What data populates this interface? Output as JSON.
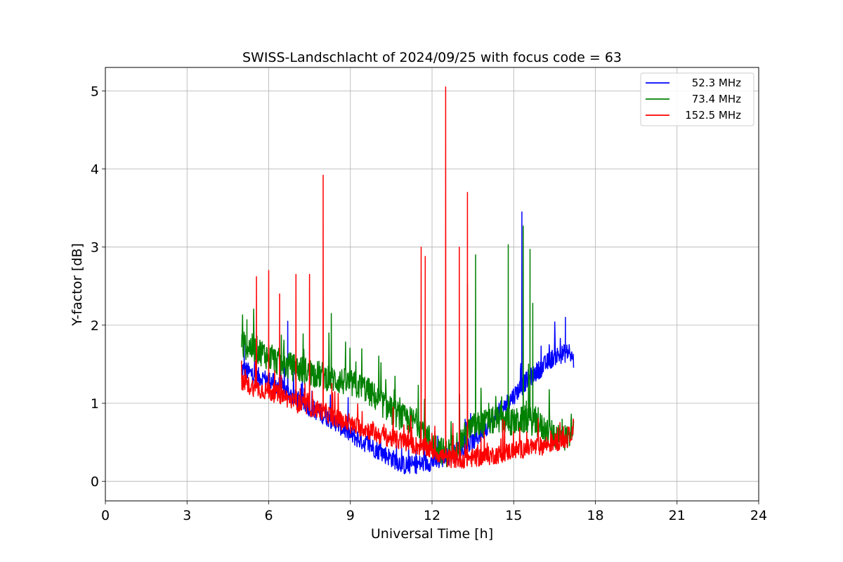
{
  "chart_data": {
    "type": "line",
    "title": "SWISS-Landschlacht of 2024/09/25 with focus code = 63",
    "xlabel": "Universal Time [h]",
    "ylabel": "Y-factor [dB]",
    "xlim": [
      0,
      24
    ],
    "ylim": [
      -0.25,
      5.3
    ],
    "xticks": [
      0,
      3,
      6,
      9,
      12,
      15,
      18,
      21,
      24
    ],
    "yticks": [
      0,
      1,
      2,
      3,
      4,
      5
    ],
    "grid": true,
    "legend_position": "top-right",
    "series": [
      {
        "name": "52.3 MHz",
        "color": "#0000ff",
        "base": [
          [
            5.0,
            1.45
          ],
          [
            5.5,
            1.35
          ],
          [
            6.0,
            1.3
          ],
          [
            6.5,
            1.2
          ],
          [
            7.0,
            1.05
          ],
          [
            7.5,
            0.95
          ],
          [
            8.0,
            0.85
          ],
          [
            8.5,
            0.75
          ],
          [
            9.0,
            0.6
          ],
          [
            9.5,
            0.5
          ],
          [
            10.0,
            0.4
          ],
          [
            10.5,
            0.3
          ],
          [
            11.0,
            0.2
          ],
          [
            11.5,
            0.22
          ],
          [
            12.0,
            0.25
          ],
          [
            12.5,
            0.3
          ],
          [
            13.0,
            0.4
          ],
          [
            13.5,
            0.5
          ],
          [
            14.0,
            0.7
          ],
          [
            14.5,
            0.9
          ],
          [
            15.0,
            1.1
          ],
          [
            15.5,
            1.3
          ],
          [
            16.0,
            1.45
          ],
          [
            16.5,
            1.6
          ],
          [
            17.0,
            1.65
          ],
          [
            17.2,
            1.55
          ]
        ],
        "noise": 0.12,
        "spikes": [
          [
            5.1,
            1.75
          ],
          [
            6.7,
            2.05
          ],
          [
            15.3,
            3.45
          ],
          [
            16.9,
            2.1
          ]
        ]
      },
      {
        "name": "73.4 MHz",
        "color": "#008000",
        "base": [
          [
            5.0,
            1.75
          ],
          [
            5.5,
            1.7
          ],
          [
            6.0,
            1.6
          ],
          [
            6.5,
            1.5
          ],
          [
            7.0,
            1.45
          ],
          [
            7.5,
            1.4
          ],
          [
            8.0,
            1.35
          ],
          [
            8.5,
            1.3
          ],
          [
            9.0,
            1.25
          ],
          [
            9.5,
            1.2
          ],
          [
            10.0,
            1.05
          ],
          [
            10.5,
            0.9
          ],
          [
            11.0,
            0.8
          ],
          [
            11.5,
            0.75
          ],
          [
            12.0,
            0.5
          ],
          [
            12.5,
            0.35
          ],
          [
            13.0,
            0.5
          ],
          [
            13.5,
            0.7
          ],
          [
            14.0,
            0.75
          ],
          [
            14.5,
            0.8
          ],
          [
            15.0,
            0.75
          ],
          [
            15.5,
            0.8
          ],
          [
            16.0,
            0.7
          ],
          [
            16.5,
            0.6
          ],
          [
            17.0,
            0.55
          ],
          [
            17.2,
            0.8
          ]
        ],
        "noise": 0.18,
        "spikes": [
          [
            5.2,
            2.07
          ],
          [
            8.3,
            2.15
          ],
          [
            13.3,
            2.52
          ],
          [
            13.6,
            2.9
          ],
          [
            14.8,
            3.03
          ],
          [
            15.35,
            3.27
          ],
          [
            15.6,
            2.97
          ],
          [
            15.7,
            2.28
          ]
        ]
      },
      {
        "name": "152.5 MHz",
        "color": "#ff0000",
        "base": [
          [
            5.0,
            1.25
          ],
          [
            5.5,
            1.2
          ],
          [
            6.0,
            1.15
          ],
          [
            6.5,
            1.1
          ],
          [
            7.0,
            1.0
          ],
          [
            7.5,
            0.95
          ],
          [
            8.0,
            0.9
          ],
          [
            8.5,
            0.8
          ],
          [
            9.0,
            0.72
          ],
          [
            9.5,
            0.68
          ],
          [
            10.0,
            0.6
          ],
          [
            10.5,
            0.55
          ],
          [
            11.0,
            0.5
          ],
          [
            11.5,
            0.45
          ],
          [
            12.0,
            0.4
          ],
          [
            12.5,
            0.3
          ],
          [
            13.0,
            0.28
          ],
          [
            13.5,
            0.3
          ],
          [
            14.0,
            0.32
          ],
          [
            14.5,
            0.35
          ],
          [
            15.0,
            0.4
          ],
          [
            15.5,
            0.42
          ],
          [
            16.0,
            0.45
          ],
          [
            16.5,
            0.5
          ],
          [
            17.0,
            0.55
          ],
          [
            17.2,
            0.7
          ]
        ],
        "noise": 0.12,
        "spikes": [
          [
            5.55,
            2.62
          ],
          [
            6.0,
            2.7
          ],
          [
            6.4,
            2.4
          ],
          [
            7.0,
            2.65
          ],
          [
            7.5,
            2.65
          ],
          [
            8.0,
            3.92
          ],
          [
            11.6,
            3.0
          ],
          [
            11.75,
            2.88
          ],
          [
            12.5,
            5.05
          ],
          [
            13.0,
            3.0
          ],
          [
            13.3,
            3.7
          ]
        ]
      }
    ]
  }
}
